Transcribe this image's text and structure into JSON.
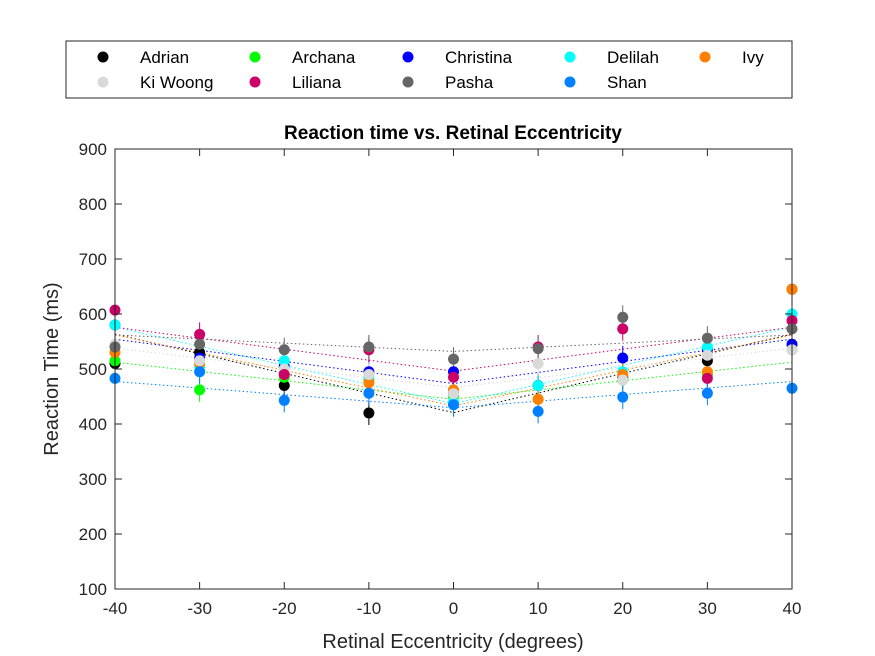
{
  "chart_data": {
    "type": "scatter",
    "title": "Reaction time vs. Retinal Eccentricity",
    "xlabel": "Retinal Eccentricity (degrees)",
    "ylabel": "Reaction Time (ms)",
    "xlim": [
      -40,
      40
    ],
    "ylim": [
      100,
      900
    ],
    "xticks": [
      -40,
      -30,
      -20,
      -10,
      0,
      10,
      20,
      30,
      40
    ],
    "yticks": [
      100,
      200,
      300,
      400,
      500,
      600,
      700,
      800,
      900
    ],
    "x": [
      -40,
      -30,
      -20,
      -10,
      0,
      10,
      20,
      30,
      40
    ],
    "grid": false,
    "legend_position": "top, outside plot area",
    "series": [
      {
        "name": "Adrian",
        "color": "#000000",
        "values": [
          510,
          530,
          470,
          420,
          455,
          470,
          485,
          515,
          645
        ]
      },
      {
        "name": "Archana",
        "color": "#00ff00",
        "values": [
          515,
          462,
          485,
          480,
          450,
          445,
          480,
          490,
          535
        ]
      },
      {
        "name": "Christina",
        "color": "#0000ff",
        "values": [
          580,
          520,
          505,
          495,
          495,
          470,
          520,
          535,
          545
        ]
      },
      {
        "name": "Delilah",
        "color": "#00ffff",
        "values": [
          580,
          505,
          515,
          485,
          440,
          470,
          495,
          540,
          600
        ]
      },
      {
        "name": "Ivy",
        "color": "#ff8000",
        "values": [
          530,
          510,
          490,
          475,
          462,
          445,
          490,
          495,
          645
        ]
      },
      {
        "name": "Ki Woong",
        "color": "#d9d9d9",
        "values": [
          545,
          515,
          500,
          490,
          455,
          510,
          480,
          525,
          535
        ]
      },
      {
        "name": "Liliana",
        "color": "#cc0066",
        "values": [
          607,
          563,
          490,
          535,
          485,
          540,
          573,
          483,
          588
        ]
      },
      {
        "name": "Pasha",
        "color": "#666666",
        "values": [
          540,
          545,
          535,
          540,
          518,
          537,
          594,
          556,
          573
        ]
      },
      {
        "name": "Shan",
        "color": "#0080ff",
        "values": [
          483,
          495,
          443,
          456,
          435,
          423,
          449,
          456,
          465
        ]
      }
    ]
  }
}
